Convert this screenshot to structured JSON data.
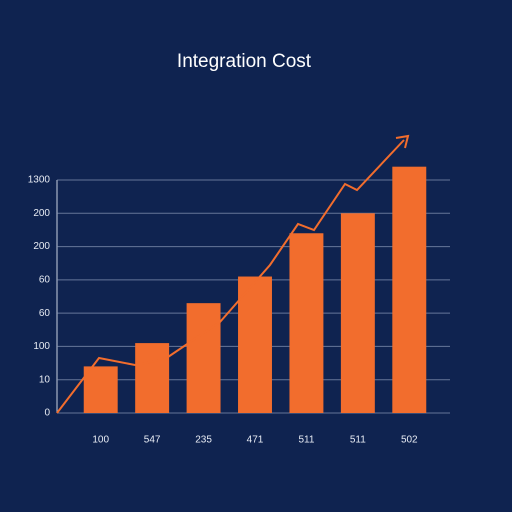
{
  "chart_data": {
    "type": "bar",
    "title": "Integration Cost",
    "categories": [
      "100",
      "547",
      "235",
      "471",
      "511",
      "511",
      "502"
    ],
    "values": [
      1.4,
      2.1,
      3.3,
      4.1,
      5.4,
      6.0,
      7.4
    ],
    "color": "#f26d2d",
    "ylim": [
      0,
      7
    ],
    "yticks": [
      {
        "value": 0,
        "label": "0"
      },
      {
        "value": 1,
        "label": "10"
      },
      {
        "value": 2,
        "label": "100"
      },
      {
        "value": 3,
        "label": "60"
      },
      {
        "value": 4,
        "label": "60"
      },
      {
        "value": 5,
        "label": "200"
      },
      {
        "value": 6,
        "label": "200"
      },
      {
        "value": 7,
        "label": "1300"
      }
    ],
    "grid": true
  }
}
